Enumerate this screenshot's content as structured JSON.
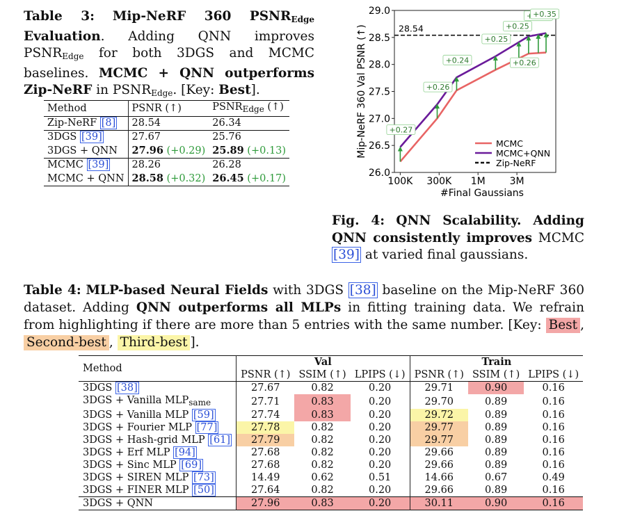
{
  "table3": {
    "caption_label": "Table 3:",
    "caption_title_pre": "Mip-NeRF 360 PSNR",
    "caption_title_sub": "Edge",
    "caption_title_post": "Evaluation",
    "caption_text1": ". Adding QNN improves PSNR",
    "caption_sub2": "Edge",
    "caption_text2": " for both 3DGS and MCMC baselines. ",
    "caption_bold2": "MCMC + QNN outperforms Zip-NeRF",
    "caption_text3": " in PSNR",
    "caption_sub3": "Edge",
    "caption_text4": ". [Key: ",
    "caption_key": "Best",
    "caption_end": "].",
    "headers": {
      "method": "Method",
      "psnr": "PSNR (↑)",
      "psnr_edge_pre": "PSNR",
      "psnr_edge_sub": "Edge",
      "psnr_edge_post": " (↑)"
    },
    "rows": [
      {
        "method": "Zip-NeRF",
        "ref": "[8]",
        "psnr": "28.54",
        "psnr_delta": "",
        "edge": "26.34",
        "edge_delta": ""
      },
      {
        "method": "3DGS",
        "ref": "[39]",
        "psnr": "27.67",
        "psnr_delta": "",
        "edge": "25.76",
        "edge_delta": ""
      },
      {
        "method": "3DGS + QNN",
        "ref": "",
        "psnr": "27.96",
        "psnr_delta": "(+0.29)",
        "edge": "25.89",
        "edge_delta": "(+0.13)"
      },
      {
        "method": "MCMC",
        "ref": "[39]",
        "psnr": "28.26",
        "psnr_delta": "",
        "edge": "26.28",
        "edge_delta": ""
      },
      {
        "method": "MCMC + QNN",
        "ref": "",
        "psnr": "28.58",
        "psnr_delta": "(+0.32)",
        "edge": "26.45",
        "edge_delta": "(+0.17)"
      }
    ]
  },
  "fig4": {
    "caption_label": "Fig. 4:",
    "caption_bold": "QNN Scalability. Adding QNN consistently improves",
    "caption_text": " MCMC ",
    "caption_ref": "[39]",
    "caption_end": " at varied final gaussians."
  },
  "chart_data": {
    "type": "line",
    "ylabel": "Mip-NeRF 360 Val PSNR (↑)",
    "xlabel": "#Final Gaussians",
    "x_ticks": [
      "100K",
      "300K",
      "1M",
      "3M"
    ],
    "ylim": [
      26.0,
      29.0
    ],
    "y_ticks": [
      26.0,
      26.5,
      27.0,
      27.5,
      28.0,
      28.5,
      29.0
    ],
    "x_index": [
      0.0,
      0.95,
      1.45,
      2.45,
      3.3,
      3.75
    ],
    "series": [
      {
        "name": "MCMC",
        "color": "#e86464",
        "values": [
          26.2,
          27.0,
          27.52,
          27.9,
          28.2,
          28.22
        ]
      },
      {
        "name": "MCMC+QNN",
        "color": "#6a1b9a",
        "values": [
          26.47,
          27.26,
          27.76,
          28.15,
          28.52,
          28.58
        ]
      }
    ],
    "reference": {
      "name": "Zip-NeRF",
      "value": 28.54,
      "label": "28.54"
    },
    "annotations": [
      "+0.27",
      "+0.26",
      "+0.24",
      "+0.25",
      "+0.25",
      "+0.26",
      "+0.32",
      "+0.35"
    ]
  },
  "table4": {
    "caption_label": "Table 4:",
    "caption_bold1": "MLP-based Neural Fields",
    "caption_text1": " with 3DGS ",
    "caption_ref": "[38]",
    "caption_text2": " baseline on the Mip-NeRF 360 dataset. Adding ",
    "caption_bold2": "QNN outperforms all MLPs",
    "caption_text3": " in fitting training data. We refrain from highlighting if there are more than 5 entries with the same number. [Key: ",
    "key_best": "Best",
    "key_second": "Second-best",
    "key_third": "Third-best",
    "caption_end": "].",
    "group_val": "Val",
    "group_train": "Train",
    "method_header": "Method",
    "col_headers": [
      "PSNR (↑)",
      "SSIM (↑)",
      "LPIPS (↓)",
      "PSNR (↑)",
      "SSIM (↑)",
      "LPIPS (↓)"
    ],
    "rows": [
      {
        "method": "3DGS",
        "sub": "",
        "ref": "[38]",
        "vals": [
          "27.67",
          "0.82",
          "0.20",
          "29.71",
          "0.90",
          "0.16"
        ],
        "hl": [
          "",
          "",
          "",
          "",
          "best",
          ""
        ]
      },
      {
        "method": "3DGS + Vanilla MLP",
        "sub": "same",
        "ref": "",
        "vals": [
          "27.71",
          "0.83",
          "0.20",
          "29.70",
          "0.89",
          "0.16"
        ],
        "hl": [
          "",
          "best",
          "",
          "",
          "",
          ""
        ]
      },
      {
        "method": "3DGS + Vanilla MLP",
        "sub": "",
        "ref": "[59]",
        "vals": [
          "27.74",
          "0.83",
          "0.20",
          "29.72",
          "0.89",
          "0.16"
        ],
        "hl": [
          "",
          "best",
          "",
          "third",
          "",
          ""
        ]
      },
      {
        "method": "3DGS + Fourier MLP",
        "sub": "",
        "ref": "[77]",
        "vals": [
          "27.78",
          "0.82",
          "0.20",
          "29.77",
          "0.89",
          "0.16"
        ],
        "hl": [
          "third",
          "",
          "",
          "second",
          "",
          ""
        ]
      },
      {
        "method": "3DGS + Hash-grid MLP",
        "sub": "",
        "ref": "[61]",
        "vals": [
          "27.79",
          "0.82",
          "0.20",
          "29.77",
          "0.89",
          "0.16"
        ],
        "hl": [
          "second",
          "",
          "",
          "second",
          "",
          ""
        ]
      },
      {
        "method": "3DGS + Erf MLP",
        "sub": "",
        "ref": "[94]",
        "vals": [
          "27.68",
          "0.82",
          "0.20",
          "29.66",
          "0.89",
          "0.16"
        ],
        "hl": [
          "",
          "",
          "",
          "",
          "",
          ""
        ]
      },
      {
        "method": "3DGS + Sinc MLP",
        "sub": "",
        "ref": "[69]",
        "vals": [
          "27.68",
          "0.82",
          "0.20",
          "29.66",
          "0.89",
          "0.16"
        ],
        "hl": [
          "",
          "",
          "",
          "",
          "",
          ""
        ]
      },
      {
        "method": "3DGS + SIREN MLP",
        "sub": "",
        "ref": "[73]",
        "vals": [
          "14.49",
          "0.62",
          "0.51",
          "14.66",
          "0.67",
          "0.49"
        ],
        "hl": [
          "",
          "",
          "",
          "",
          "",
          ""
        ]
      },
      {
        "method": "3DGS + FINER MLP",
        "sub": "",
        "ref": "[50]",
        "vals": [
          "27.64",
          "0.82",
          "0.20",
          "29.66",
          "0.89",
          "0.16"
        ],
        "hl": [
          "",
          "",
          "",
          "",
          "",
          ""
        ]
      },
      {
        "method": "3DGS + QNN",
        "sub": "",
        "ref": "",
        "vals": [
          "27.96",
          "0.83",
          "0.20",
          "30.11",
          "0.90",
          "0.16"
        ],
        "hl": [
          "best",
          "best",
          "best",
          "best",
          "best",
          "best"
        ]
      }
    ]
  }
}
